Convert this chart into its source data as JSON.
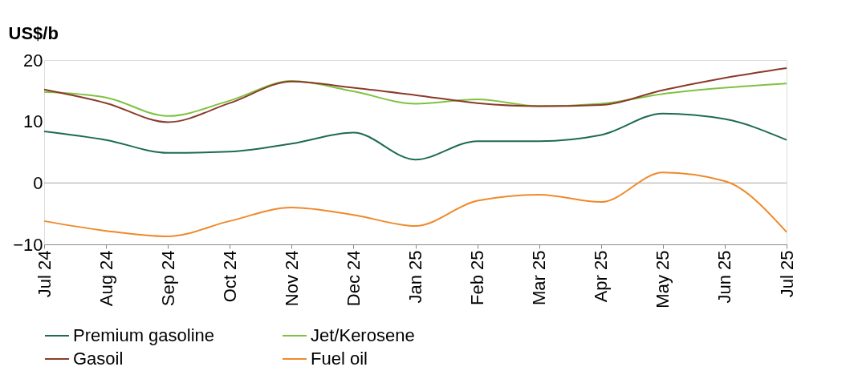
{
  "chart_data": {
    "type": "line",
    "ylabel": "US$/b",
    "categories": [
      "Jul 24",
      "Aug 24",
      "Sep 24",
      "Oct 24",
      "Nov 24",
      "Dec 24",
      "Jan 25",
      "Feb 25",
      "Mar 25",
      "Apr 25",
      "May 25",
      "Jun 25",
      "Jul 25"
    ],
    "series": [
      {
        "name": "Premium gasoline",
        "color": "#1e6b52",
        "values": [
          8.4,
          7.0,
          4.9,
          5.1,
          6.4,
          8.2,
          3.8,
          6.8,
          6.8,
          7.8,
          11.3,
          10.4,
          7.0
        ]
      },
      {
        "name": "Jet/Kerosene",
        "color": "#7fc241",
        "values": [
          14.8,
          13.9,
          10.9,
          13.4,
          16.6,
          14.9,
          12.9,
          13.6,
          12.5,
          12.9,
          14.5,
          15.5,
          16.2
        ]
      },
      {
        "name": "Gasoil",
        "color": "#8b3a2a",
        "values": [
          15.2,
          13.0,
          9.9,
          13.0,
          16.5,
          15.5,
          14.3,
          13.0,
          12.5,
          12.7,
          15.1,
          17.1,
          18.7
        ]
      },
      {
        "name": "Fuel oil",
        "color": "#f0892a",
        "values": [
          -6.2,
          -7.8,
          -8.7,
          -6.2,
          -4.0,
          -5.2,
          -7.0,
          -2.9,
          -1.9,
          -3.1,
          1.7,
          0.3,
          -8.0
        ]
      }
    ],
    "ylim": [
      -10,
      20
    ],
    "yticks": [
      -10,
      0,
      10,
      20
    ],
    "ref_lines": [
      {
        "axis": "y",
        "value": 0,
        "color": "#a6a6a6"
      }
    ],
    "grid": false,
    "legend": "bottom",
    "marker": "none",
    "line_style": "solid"
  }
}
